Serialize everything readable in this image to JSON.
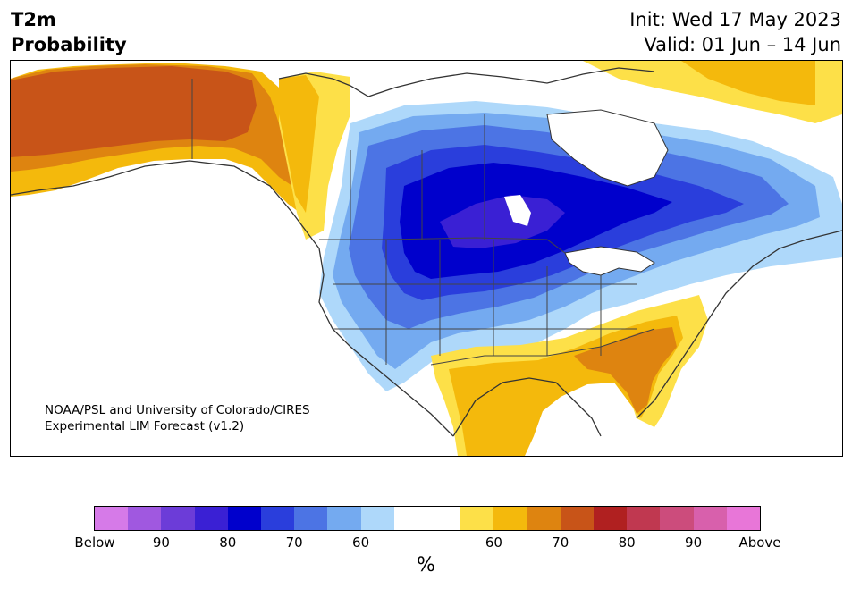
{
  "header": {
    "title_line1": "T2m",
    "title_line2": "Probability",
    "init": "Init: Wed 17 May 2023",
    "valid": "Valid: 01 Jun – 14 Jun"
  },
  "credit": {
    "line1": "NOAA/PSL and University of Colorado/CIRES",
    "line2": "Experimental LIM Forecast (v1.2)"
  },
  "colorbar": {
    "colors": [
      "#d67ae8",
      "#a058e0",
      "#6c3cd8",
      "#3a20d4",
      "#0000cc",
      "#2a3edc",
      "#4c74e4",
      "#74aaf0",
      "#aed8fa",
      "#ffffff",
      "#ffffff",
      "#fde048",
      "#f4b90c",
      "#de8410",
      "#c85418",
      "#b02020",
      "#c03850",
      "#cc4c7c",
      "#d860ac",
      "#e876d8"
    ],
    "labels": [
      "Below",
      "90",
      "80",
      "70",
      "60",
      "60",
      "70",
      "80",
      "90",
      "Above"
    ],
    "unit": "%"
  },
  "map": {
    "land_color": "#ffffff",
    "coast_color": "#333333",
    "border_color": "#444444"
  }
}
